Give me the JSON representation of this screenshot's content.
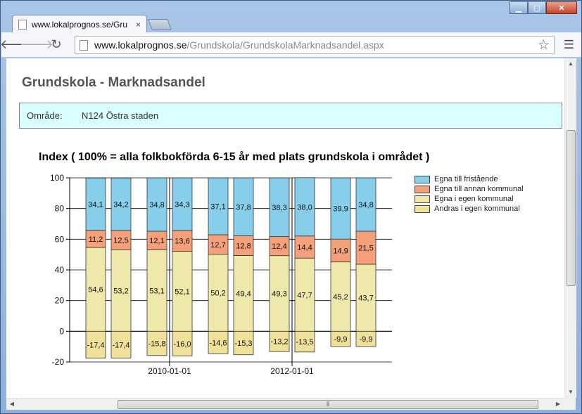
{
  "browser": {
    "tab_title": "www.lokalprognos.se/Gru",
    "tab_close": "×",
    "url_host": "www.lokalprognos.se",
    "url_path": "/Grundskola/GrundskolaMarknadsandel.aspx"
  },
  "page": {
    "title": "Grundskola - Marknadsandel",
    "area_label": "Område:",
    "area_value": "N124 Östra staden"
  },
  "colors": {
    "fristaende": "#87ceeb",
    "annan_kommunal": "#f4a07a",
    "egen_kommunal": "#eee8aa",
    "andras_egen": "#f0e19a"
  },
  "chart_data": {
    "type": "bar",
    "stacked": true,
    "title": "Index ( 100% = alla folkbokförda 6-15 år med plats grundskola i området )",
    "ylim": [
      -20,
      100
    ],
    "yticks": [
      -20,
      0,
      20,
      40,
      60,
      80,
      100
    ],
    "xtick_labels": [
      "2010-01-01",
      "2012-01-01"
    ],
    "grid": true,
    "legend_position": "right",
    "series": [
      {
        "name": "Egna till fristående",
        "color": "#87ceeb",
        "values": [
          34.1,
          34.2,
          34.8,
          34.3,
          37.1,
          37.8,
          38.3,
          38.0,
          39.9,
          34.8
        ],
        "labels": [
          "34,1",
          "34,2",
          "34,8",
          "34,3",
          "37,1",
          "37,8",
          "38,3",
          "38,0",
          "39,9",
          "34,8"
        ]
      },
      {
        "name": "Egna till annan kommunal",
        "color": "#f4a07a",
        "values": [
          11.2,
          12.5,
          12.1,
          13.6,
          12.7,
          12.8,
          12.4,
          14.4,
          14.9,
          21.5
        ],
        "labels": [
          "11,2",
          "12,5",
          "12,1",
          "13,6",
          "12,7",
          "12,8",
          "12,4",
          "14,4",
          "14,9",
          "21,5"
        ]
      },
      {
        "name": "Egna i egen kommunal",
        "color": "#eee8aa",
        "values": [
          54.6,
          53.2,
          53.1,
          52.1,
          50.2,
          49.4,
          49.3,
          47.7,
          45.2,
          43.7
        ],
        "labels": [
          "54,6",
          "53,2",
          "53,1",
          "52,1",
          "50,2",
          "49,4",
          "49,3",
          "47,7",
          "45,2",
          "43,7"
        ]
      },
      {
        "name": "Andras i egen kommunal",
        "color": "#f0e19a",
        "values": [
          -17.4,
          -17.4,
          -15.8,
          -16.0,
          -14.6,
          -15.3,
          -13.2,
          -13.5,
          -9.9,
          -9.9
        ],
        "labels": [
          "-17,4",
          "-17,4",
          "-15,8",
          "-16,0",
          "-14,6",
          "-15,3",
          "-13,2",
          "-13,5",
          "-9,9",
          "-9,9"
        ]
      }
    ]
  }
}
